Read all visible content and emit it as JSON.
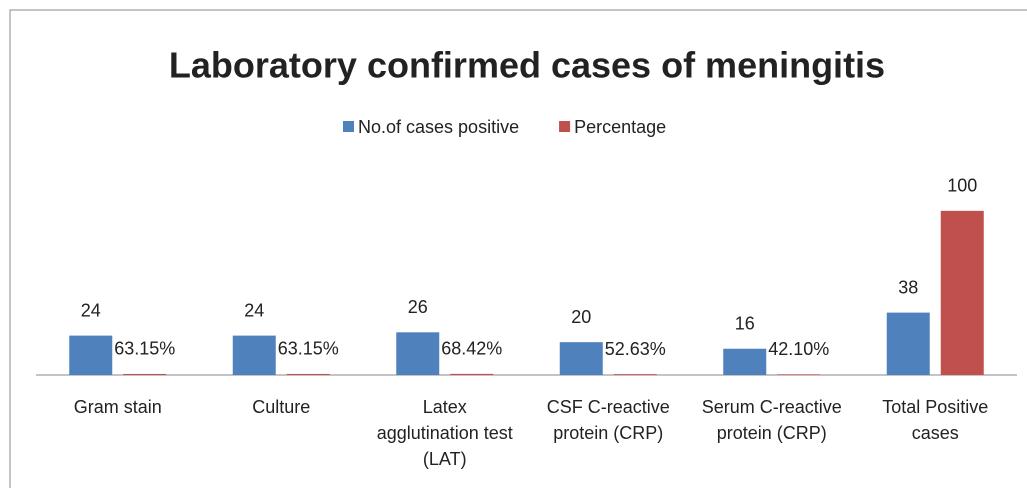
{
  "chart_data": {
    "type": "bar",
    "title": "Laboratory confirmed cases of meningitis",
    "categories": [
      "Gram stain",
      "Culture",
      "Latex agglutination test (LAT)",
      "CSF C-reactive protein (CRP)",
      "Serum C-reactive protein (CRP)",
      "Total Positive cases"
    ],
    "series": [
      {
        "name": "No.of cases positive",
        "color": "#4f81bd",
        "values": [
          24,
          24,
          26,
          20,
          16,
          38
        ]
      },
      {
        "name": "Percentage",
        "color": "#c0504d",
        "values": [
          0.6315,
          0.6315,
          0.6842,
          0.5263,
          0.421,
          100
        ],
        "value_labels": [
          "63.15%",
          "63.15%",
          "68.42%",
          "52.63%",
          "42.10%",
          "100"
        ]
      }
    ],
    "ylim": [
      0,
      120
    ],
    "legend": "top"
  }
}
